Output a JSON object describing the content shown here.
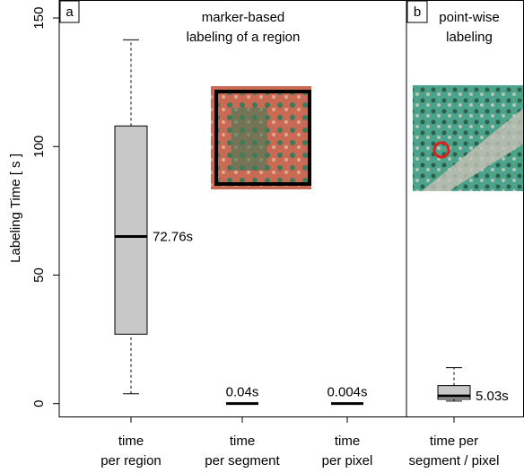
{
  "chart_data": {
    "type": "box",
    "y_label": "Labeling Time [ s ]",
    "ylim": [
      -5,
      157
    ],
    "yticks": [
      0,
      50,
      100,
      150
    ],
    "panels": [
      {
        "letter": "a",
        "title": [
          "marker-based",
          "labeling of a region"
        ]
      },
      {
        "letter": "b",
        "title": [
          "point-wise",
          "labeling"
        ]
      }
    ],
    "categories": [
      [
        "time",
        "per region"
      ],
      [
        "time",
        "per segment"
      ],
      [
        "time",
        "per pixel"
      ],
      [
        "time per",
        "segment / pixel"
      ]
    ],
    "color": "#c8c8c8",
    "boxes": [
      {
        "whisker_low": 3.8,
        "q1": 27,
        "median": 65,
        "q3": 108,
        "whisker_high": 141.5,
        "label": "72.76s"
      },
      {
        "median": 0.04,
        "label": "0.04s"
      },
      {
        "median": 0.004,
        "label": "0.004s"
      },
      {
        "whisker_low": 1,
        "q1": 1.7,
        "median": 3,
        "q3": 7,
        "whisker_high": 14,
        "label": "5.03s"
      }
    ]
  }
}
